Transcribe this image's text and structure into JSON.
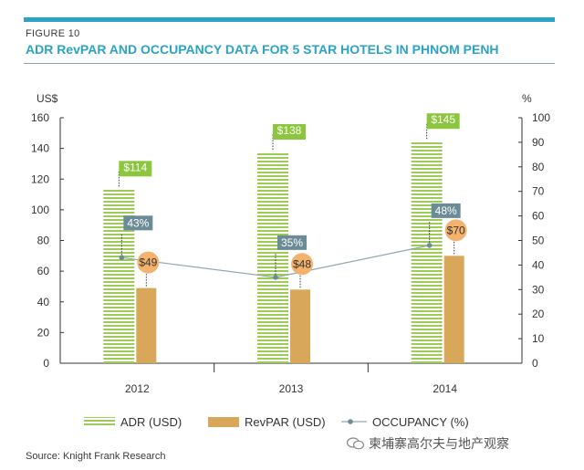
{
  "figure": {
    "label": "FIGURE 10",
    "title": "ADR RevPAR AND OCCUPANCY DATA FOR 5 STAR HOTELS IN PHNOM PENH"
  },
  "chart_data": {
    "type": "bar",
    "categories": [
      "2012",
      "2013",
      "2014"
    ],
    "left_axis": {
      "unit_label": "US$",
      "ylim": [
        0,
        160
      ],
      "ticks": [
        0,
        20,
        40,
        60,
        80,
        100,
        120,
        140,
        160
      ]
    },
    "right_axis": {
      "unit_label": "%",
      "ylim": [
        0,
        100
      ],
      "ticks": [
        0,
        10,
        20,
        30,
        40,
        50,
        60,
        70,
        80,
        90,
        100
      ]
    },
    "series": [
      {
        "name": "ADR (USD)",
        "kind": "bar",
        "axis": "left",
        "pattern": "green-stripes",
        "color": "#8cc63f",
        "values": [
          114,
          138,
          145
        ],
        "labels": [
          "$114",
          "$138",
          "$145"
        ]
      },
      {
        "name": "RevPAR (USD)",
        "kind": "bar",
        "axis": "left",
        "color": "#d9a75a",
        "values": [
          49,
          48,
          70
        ],
        "labels": [
          "$49",
          "$48",
          "$70"
        ]
      },
      {
        "name": "OCCUPANCY (%)",
        "kind": "line",
        "axis": "right",
        "color": "#8fa9b1",
        "values": [
          43,
          35,
          48
        ],
        "labels": [
          "43%",
          "35%",
          "48%"
        ]
      }
    ],
    "grid": false,
    "legend_position": "bottom"
  },
  "colors": {
    "accent": "#2aa3c4",
    "adr_label_bg": "#8cc63f",
    "occupancy_label_bg": "#6b8c97",
    "revpar_bubble": "#f4b26d"
  },
  "source": "Source: Knight Frank Research",
  "watermark": "柬埔寨高尔夫与地产观察"
}
